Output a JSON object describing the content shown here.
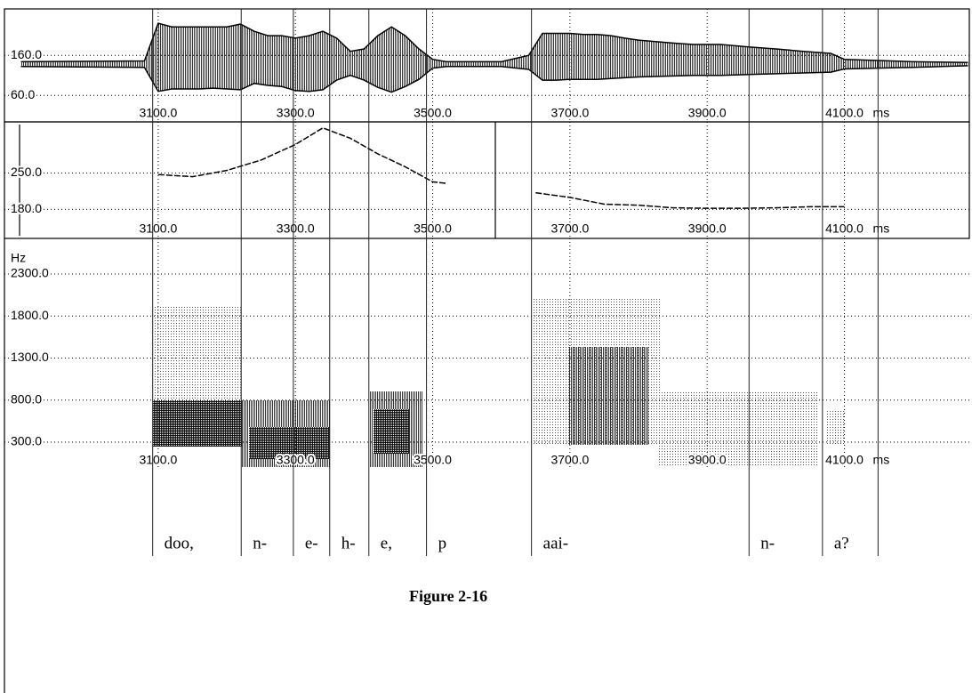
{
  "chart_data": [
    {
      "type": "area",
      "x": [
        2900,
        3080,
        3100,
        3120,
        3140,
        3160,
        3180,
        3200,
        3220,
        3240,
        3260,
        3280,
        3300,
        3320,
        3340,
        3360,
        3380,
        3400,
        3420,
        3440,
        3460,
        3480,
        3500,
        3520,
        3600,
        3640,
        3660,
        3680,
        3700,
        3720,
        3740,
        3760,
        3780,
        3800,
        3840,
        3880,
        3920,
        3960,
        4000,
        4040,
        4080,
        4100,
        4200,
        4280
      ],
      "series": [
        {
          "values": [
            144,
            146,
            240,
            231,
            231,
            231,
            231,
            231,
            238,
            220,
            209,
            209,
            203,
            209,
            220,
            203,
            170,
            176,
            209,
            231,
            209,
            176,
            150,
            144,
            144,
            160,
            215,
            215,
            215,
            212,
            212,
            209,
            203,
            198,
            192,
            187,
            187,
            181,
            176,
            170,
            165,
            150,
            144,
            142
          ],
          "color": "#000000"
        },
        {
          "values": [
            132,
            130,
            70,
            76,
            76,
            76,
            78,
            76,
            74,
            90,
            85,
            82,
            72,
            70,
            74,
            98,
            110,
            98,
            80,
            68,
            82,
            100,
            128,
            132,
            132,
            125,
            98,
            98,
            100,
            100,
            100,
            102,
            104,
            106,
            108,
            110,
            110,
            112,
            114,
            116,
            118,
            126,
            130,
            134
          ],
          "color": "#000000"
        }
      ],
      "xlim": [
        2876,
        4282
      ],
      "ylim": [
        36,
        276
      ],
      "xticks": [
        {
          "value": 3100,
          "label": "3100.0"
        },
        {
          "value": 3300,
          "label": "3300.0"
        },
        {
          "value": 3500,
          "label": "3500.0"
        },
        {
          "value": 3700,
          "label": "3700.0"
        },
        {
          "value": 3900,
          "label": "3900.0"
        },
        {
          "value": 4100,
          "label": "4100.0"
        }
      ],
      "yticks": [
        {
          "value": 160,
          "label": "160.0"
        },
        {
          "value": 60,
          "label": "60.0"
        }
      ],
      "x_unit": "ms",
      "grid": true
    },
    {
      "type": "line",
      "x": [
        3100,
        3150,
        3200,
        3250,
        3300,
        3340,
        3380,
        3420,
        3460,
        3500,
        3520,
        3600,
        3650,
        3700,
        3750,
        3800,
        3850,
        3900,
        3950,
        4000,
        4050,
        4100
      ],
      "series": [
        {
          "values": [
            247,
            243,
            255,
            275,
            305,
            337,
            317,
            287,
            262,
            233,
            230,
            null,
            212,
            203,
            190,
            188,
            183,
            182,
            182,
            183,
            185,
            185
          ],
          "color": "#000000"
        }
      ],
      "xlim": [
        2876,
        4282
      ],
      "ylim": [
        160,
        340
      ],
      "xticks": [
        {
          "value": 3100,
          "label": "3100.0"
        },
        {
          "value": 3300,
          "label": "3300.0"
        },
        {
          "value": 3500,
          "label": "3500.0"
        },
        {
          "value": 3700,
          "label": "3700.0"
        },
        {
          "value": 3900,
          "label": "3900.0"
        },
        {
          "value": 4100,
          "label": "4100.0"
        }
      ],
      "yticks": [
        {
          "value": 250,
          "label": "250.0"
        },
        {
          "value": 180,
          "label": "180.0"
        }
      ],
      "x_unit": "ms",
      "grid": true
    },
    {
      "type": "spectrogram",
      "y_label": "Hz",
      "xlim": [
        2876,
        4282
      ],
      "ylim": [
        78,
        2385
      ],
      "xticks": [
        {
          "value": 3100,
          "label": "3100.0"
        },
        {
          "value": 3300,
          "label": "3300.0"
        },
        {
          "value": 3500,
          "label": "3500.0"
        },
        {
          "value": 3700,
          "label": "3700.0"
        },
        {
          "value": 3900,
          "label": "3900.0"
        },
        {
          "value": 4100,
          "label": "4100.0"
        }
      ],
      "yticks": [
        {
          "value": 2300,
          "label": "2300.0"
        },
        {
          "value": 1800,
          "label": "1800.0"
        },
        {
          "value": 1300,
          "label": "1300.0"
        },
        {
          "value": 800,
          "label": "800.0"
        },
        {
          "value": 300,
          "label": "300.0"
        }
      ],
      "x_unit": "ms",
      "grid": true,
      "boundaries": [
        3092,
        3221,
        3297,
        3350,
        3407,
        3491,
        3644,
        3961,
        4068,
        4149
      ],
      "segment_labels": [
        "doo,",
        "n-",
        "e-",
        "h-",
        "e,",
        "p",
        "aai-",
        "n-",
        "a?"
      ]
    }
  ],
  "caption": "Figure 2-16"
}
